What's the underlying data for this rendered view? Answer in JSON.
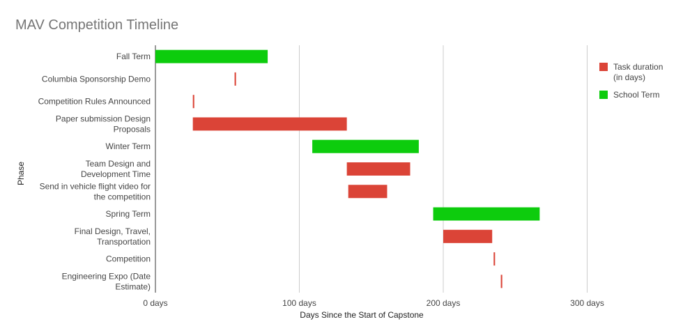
{
  "chart_data": {
    "type": "bar",
    "orientation": "horizontal-range",
    "title": "MAV Competition Timeline",
    "xlabel": "Days Since the Start of Capstone",
    "ylabel": "Phase",
    "xlim": [
      0,
      350
    ],
    "xticks": [
      0,
      100,
      200,
      300
    ],
    "xtick_labels": [
      "0 days",
      "100 days",
      "200 days",
      "300 days"
    ],
    "grid": true,
    "legend_position": "right",
    "series": [
      {
        "name": "Task duration (in days)",
        "name_lines": [
          "Task duration",
          "(in days)"
        ],
        "color": "#db4437"
      },
      {
        "name": "School Term",
        "name_lines": [
          "School Term"
        ],
        "color": "#0dcc0d"
      }
    ],
    "categories": [
      {
        "label": [
          "Fall Term"
        ],
        "start": 0,
        "end": 78,
        "series": 1
      },
      {
        "label": [
          "Columbia Sponsorship Demo"
        ],
        "start": 55,
        "end": 56,
        "series": 0
      },
      {
        "label": [
          "Competition Rules Announced"
        ],
        "start": 26,
        "end": 27,
        "series": 0
      },
      {
        "label": [
          "Paper submission Design",
          "Proposals"
        ],
        "start": 26,
        "end": 133,
        "series": 0
      },
      {
        "label": [
          "Winter Term"
        ],
        "start": 109,
        "end": 183,
        "series": 1
      },
      {
        "label": [
          "Team Design and",
          "Development Time"
        ],
        "start": 133,
        "end": 177,
        "series": 0
      },
      {
        "label": [
          "Send in vehicle flight video for",
          "the competition"
        ],
        "start": 134,
        "end": 161,
        "series": 0
      },
      {
        "label": [
          "Spring Term"
        ],
        "start": 193,
        "end": 267,
        "series": 1
      },
      {
        "label": [
          "Final Design, Travel,",
          "Transportation"
        ],
        "start": 200,
        "end": 234,
        "series": 0
      },
      {
        "label": [
          "Competition"
        ],
        "start": 235,
        "end": 236,
        "series": 0
      },
      {
        "label": [
          "Engineering Expo (Date",
          "Estimate)"
        ],
        "start": 240,
        "end": 241,
        "series": 0
      }
    ]
  }
}
